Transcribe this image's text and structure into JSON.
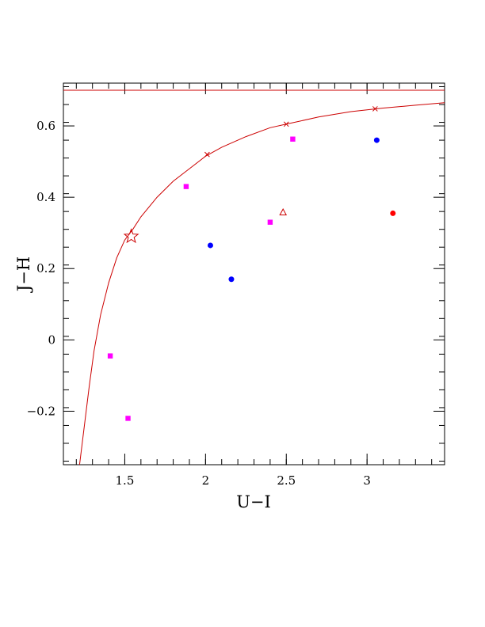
{
  "chart_data": {
    "type": "scatter",
    "xlabel": "U−I",
    "ylabel": "J−H",
    "xlim": [
      1.12,
      3.48
    ],
    "ylim": [
      -0.35,
      0.72
    ],
    "x_ticks": [
      {
        "value": 1.5,
        "label": "1.5"
      },
      {
        "value": 2.0,
        "label": "2"
      },
      {
        "value": 2.5,
        "label": "2.5"
      },
      {
        "value": 3.0,
        "label": "3"
      }
    ],
    "y_ticks": [
      {
        "value": -0.2,
        "label": "−0.2"
      },
      {
        "value": 0.0,
        "label": "0"
      },
      {
        "value": 0.2,
        "label": "0.2"
      },
      {
        "value": 0.4,
        "label": "0.4"
      },
      {
        "value": 0.6,
        "label": "0.6"
      }
    ],
    "grid": false,
    "asymptote": {
      "y": 0.7,
      "color": "#cc0000"
    },
    "curve": {
      "color": "#cc0000",
      "points": [
        [
          1.22,
          -0.35
        ],
        [
          1.25,
          -0.24
        ],
        [
          1.28,
          -0.13
        ],
        [
          1.31,
          -0.03
        ],
        [
          1.35,
          0.07
        ],
        [
          1.4,
          0.16
        ],
        [
          1.45,
          0.23
        ],
        [
          1.5,
          0.28
        ],
        [
          1.55,
          0.31
        ],
        [
          1.6,
          0.345
        ],
        [
          1.7,
          0.4
        ],
        [
          1.8,
          0.445
        ],
        [
          1.9,
          0.48
        ],
        [
          2.0,
          0.515
        ],
        [
          2.1,
          0.54
        ],
        [
          2.25,
          0.57
        ],
        [
          2.4,
          0.595
        ],
        [
          2.5,
          0.605
        ],
        [
          2.7,
          0.625
        ],
        [
          2.9,
          0.64
        ],
        [
          3.1,
          0.65
        ],
        [
          3.3,
          0.658
        ],
        [
          3.48,
          0.665
        ]
      ],
      "x_marks": [
        [
          2.01,
          0.52
        ],
        [
          2.5,
          0.605
        ],
        [
          3.05,
          0.648
        ]
      ]
    },
    "series": [
      {
        "marker": "circle",
        "color": "#0000ff",
        "points": [
          [
            2.03,
            0.265
          ],
          [
            2.16,
            0.17
          ],
          [
            3.06,
            0.56
          ]
        ]
      },
      {
        "marker": "square",
        "color": "#ff00ff",
        "points": [
          [
            1.41,
            -0.045
          ],
          [
            1.52,
            -0.22
          ],
          [
            1.88,
            0.43
          ],
          [
            2.4,
            0.33
          ],
          [
            2.54,
            0.563
          ]
        ]
      },
      {
        "marker": "circle",
        "color": "#ff0000",
        "points": [
          [
            3.16,
            0.355
          ]
        ]
      },
      {
        "marker": "triangle-open",
        "color": "#cc0000",
        "points": [
          [
            2.48,
            0.357
          ]
        ]
      },
      {
        "marker": "star-open",
        "color": "#cc0000",
        "points": [
          [
            1.54,
            0.29
          ]
        ]
      }
    ]
  }
}
